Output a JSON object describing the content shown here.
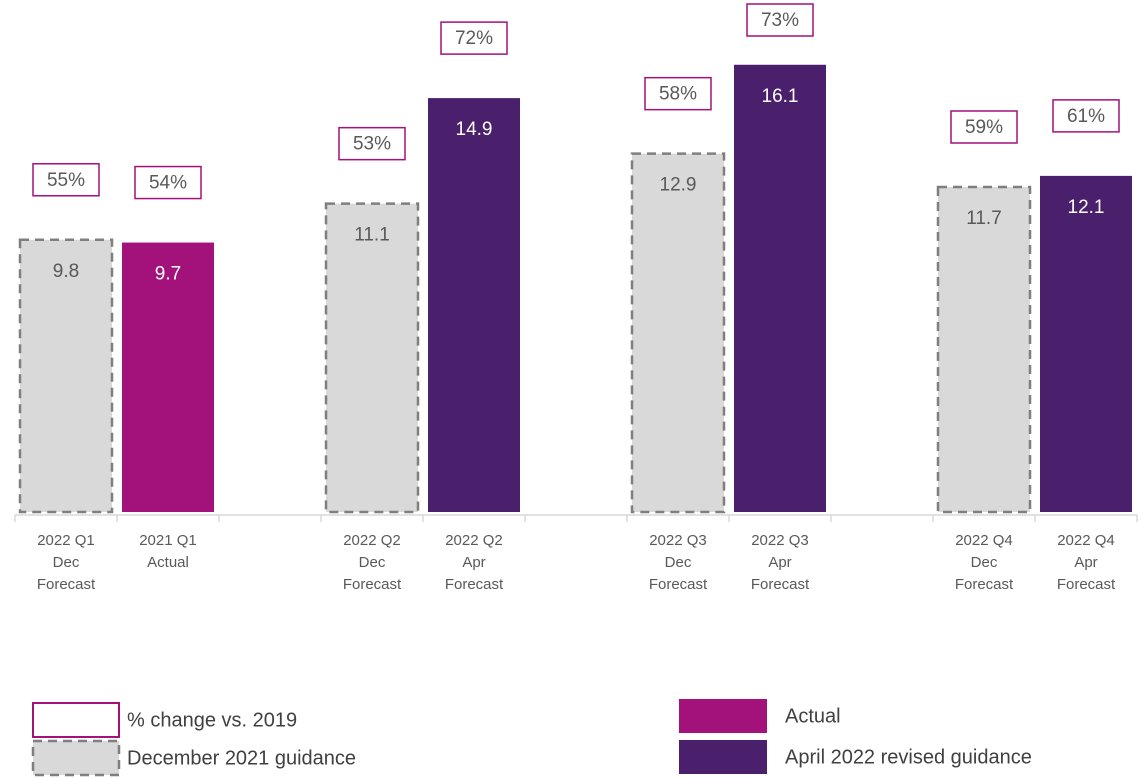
{
  "chart_data": {
    "type": "bar",
    "categories": [
      "2022 Q1\nDec\nForecast",
      "2021 Q1\nActual",
      null,
      "2022 Q2\nDec\nForecast",
      "2022 Q2\nApr\nForecast",
      null,
      "2022 Q3\nDec\nForecast",
      "2022 Q3\nApr\nForecast",
      null,
      "2022 Q4\nDec\nForecast",
      "2022 Q4\nApr\nForecast"
    ],
    "series": [
      {
        "name": "% change vs. 2019",
        "style": "outline",
        "color": "#a2127a",
        "values": [
          55,
          54,
          null,
          53,
          72,
          null,
          58,
          73,
          null,
          59,
          61
        ],
        "value_labels": [
          "55%",
          "54%",
          null,
          "53%",
          "72%",
          null,
          "58%",
          "73%",
          null,
          "59%",
          "61%"
        ]
      },
      {
        "name": "December 2021 guidance",
        "style": "dashed",
        "color": "#d9d9d9",
        "values": [
          9.8,
          null,
          null,
          11.1,
          null,
          null,
          12.9,
          null,
          null,
          11.7,
          null
        ]
      },
      {
        "name": "Actual",
        "style": "solid",
        "color": "#a2127a",
        "values": [
          null,
          9.7,
          null,
          null,
          null,
          null,
          null,
          null,
          null,
          null,
          null
        ]
      },
      {
        "name": "April 2022 revised guidance",
        "style": "solid",
        "color": "#4a1f6b",
        "values": [
          null,
          null,
          null,
          null,
          14.9,
          null,
          null,
          16.1,
          null,
          null,
          12.1
        ]
      }
    ],
    "ylim": [
      0,
      18
    ]
  }
}
